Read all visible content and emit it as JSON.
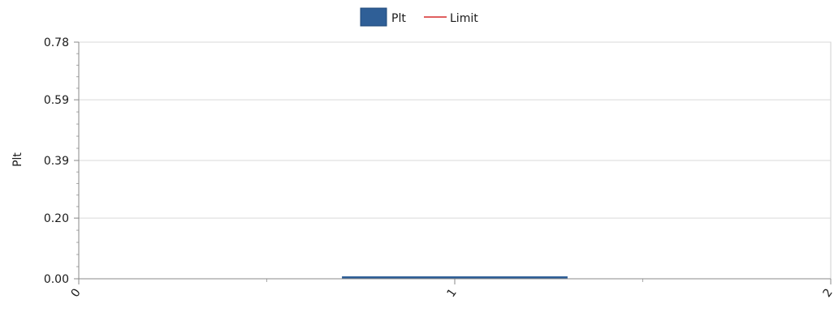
{
  "chart_data": {
    "type": "bar",
    "title": "",
    "xlabel": "",
    "ylabel": "Plt",
    "x_ticks": [
      "0",
      "1",
      "2"
    ],
    "x_range": [
      0,
      2
    ],
    "ylim": [
      0,
      0.78
    ],
    "y_ticks": [
      "0.78",
      "0.59",
      "0.39",
      "0.20",
      "0.00"
    ],
    "grid": true,
    "legend_position": "top-center",
    "series": [
      {
        "name": "Plt",
        "kind": "bar",
        "x": [
          1
        ],
        "values": [
          0.0
        ],
        "color": "#2f5f97"
      },
      {
        "name": "Limit",
        "kind": "line",
        "x": [],
        "values": [],
        "color": "#d62a2a"
      }
    ]
  }
}
